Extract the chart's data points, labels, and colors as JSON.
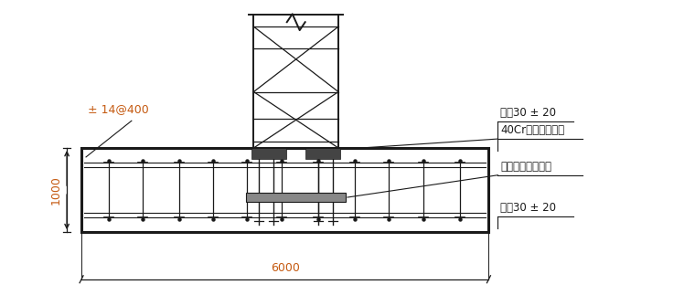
{
  "bg_color": "#ffffff",
  "line_color": "#1a1a1a",
  "dim_color": "#c55a11",
  "text_color": "#1a1a1a",
  "orange_color": "#c55a11",
  "figsize": [
    7.6,
    3.23
  ],
  "dpi": 100,
  "labels": {
    "rebar_top": "双吐30 ± 20",
    "bolt": "40Cr塔吊专用螺栓",
    "plate": "塔吊专用定位钉板",
    "rebar_bot": "双吐30 ± 20",
    "rebar_side": "± 14@400",
    "dim_h": "1000",
    "dim_w": "6000"
  }
}
